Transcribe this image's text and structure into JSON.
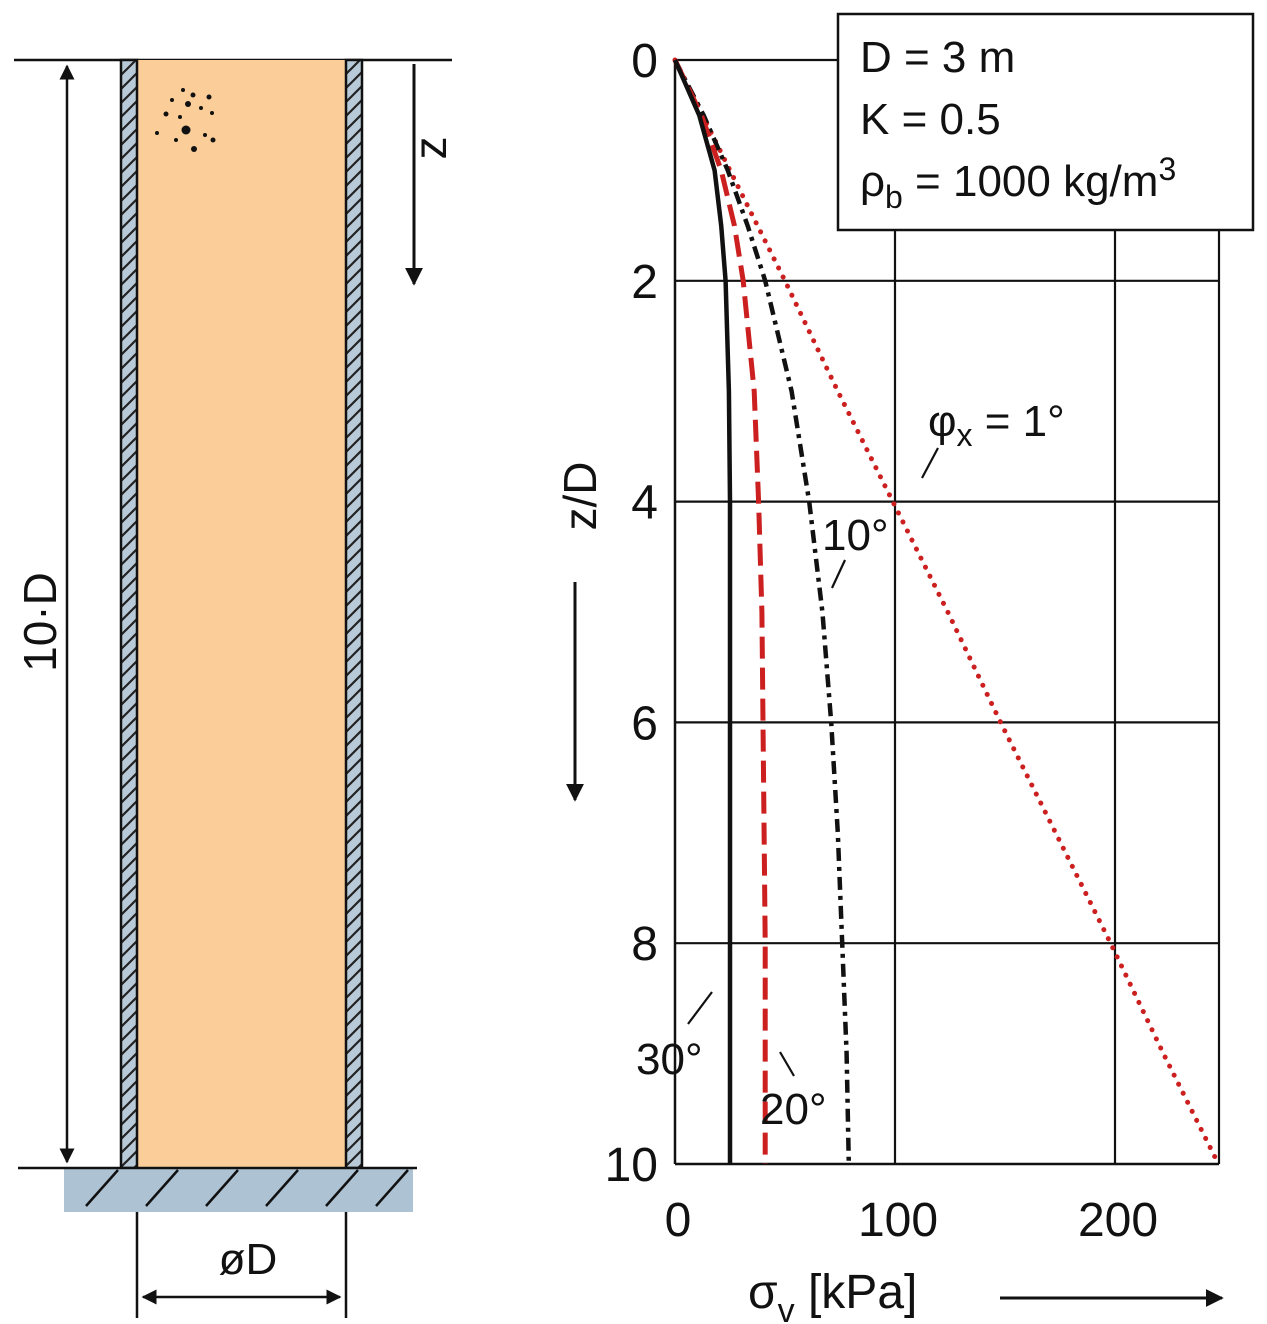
{
  "silo": {
    "height_label": "10·D",
    "diameter_label": "øD",
    "depth_label": "z",
    "colors": {
      "fill": "#fbcd98",
      "wall": "#b8cad8",
      "ground": "#adc3d3"
    }
  },
  "chart_data": {
    "type": "line",
    "xlabel": "σv [kPa]",
    "xlabel_main": "σ",
    "xlabel_sub": "v",
    "xlabel_unit": " [kPa]",
    "ylabel": "z/D",
    "xlim": [
      0,
      250
    ],
    "ylim": [
      0,
      10
    ],
    "y_inverted": true,
    "grid": true,
    "x_ticks": [
      0,
      100,
      200
    ],
    "y_ticks": [
      0,
      2,
      4,
      6,
      8,
      10
    ],
    "params": {
      "d": "D = 3 m",
      "k": "K = 0.5",
      "rho_main": "ρ",
      "rho_sub": "b",
      "rho_eq": " = 1000 kg/m",
      "rho_sup": "3"
    },
    "series": [
      {
        "name": "φx = 1°",
        "label_main": "φ",
        "label_sub": "x",
        "label_rest": " = 1°",
        "color": "#cc1f1f",
        "style": "dotted",
        "z": [
          0,
          1,
          2,
          3,
          4,
          5,
          6,
          7,
          8,
          9,
          10
        ],
        "sigma": [
          0,
          25,
          50,
          74,
          99,
          124,
          148,
          173,
          198,
          222,
          247
        ]
      },
      {
        "name": "10°",
        "label": "10°",
        "color": "#111111",
        "style": "dash-dot",
        "z": [
          0,
          0.5,
          1,
          1.5,
          2,
          3,
          4,
          5,
          6,
          7,
          8,
          9,
          10
        ],
        "sigma": [
          0,
          13,
          24,
          33,
          41,
          53,
          61,
          67,
          71,
          74,
          76,
          78,
          79
        ]
      },
      {
        "name": "20°",
        "label": "20°",
        "color": "#cc1f1f",
        "style": "dashed",
        "z": [
          0,
          0.5,
          1,
          1.5,
          2,
          3,
          4,
          5,
          6,
          7,
          8,
          9,
          10
        ],
        "sigma": [
          0,
          12,
          21,
          27,
          31,
          36,
          38,
          39.5,
          40,
          40.5,
          41,
          41,
          41
        ]
      },
      {
        "name": "30°",
        "label": "30°",
        "color": "#111111",
        "style": "solid",
        "z": [
          0,
          0.5,
          1,
          1.5,
          2,
          3,
          4,
          5,
          6,
          7,
          8,
          9,
          10
        ],
        "sigma": [
          0,
          11,
          18,
          21,
          23,
          24.5,
          25,
          25,
          25,
          25,
          25,
          25,
          25
        ]
      }
    ]
  }
}
